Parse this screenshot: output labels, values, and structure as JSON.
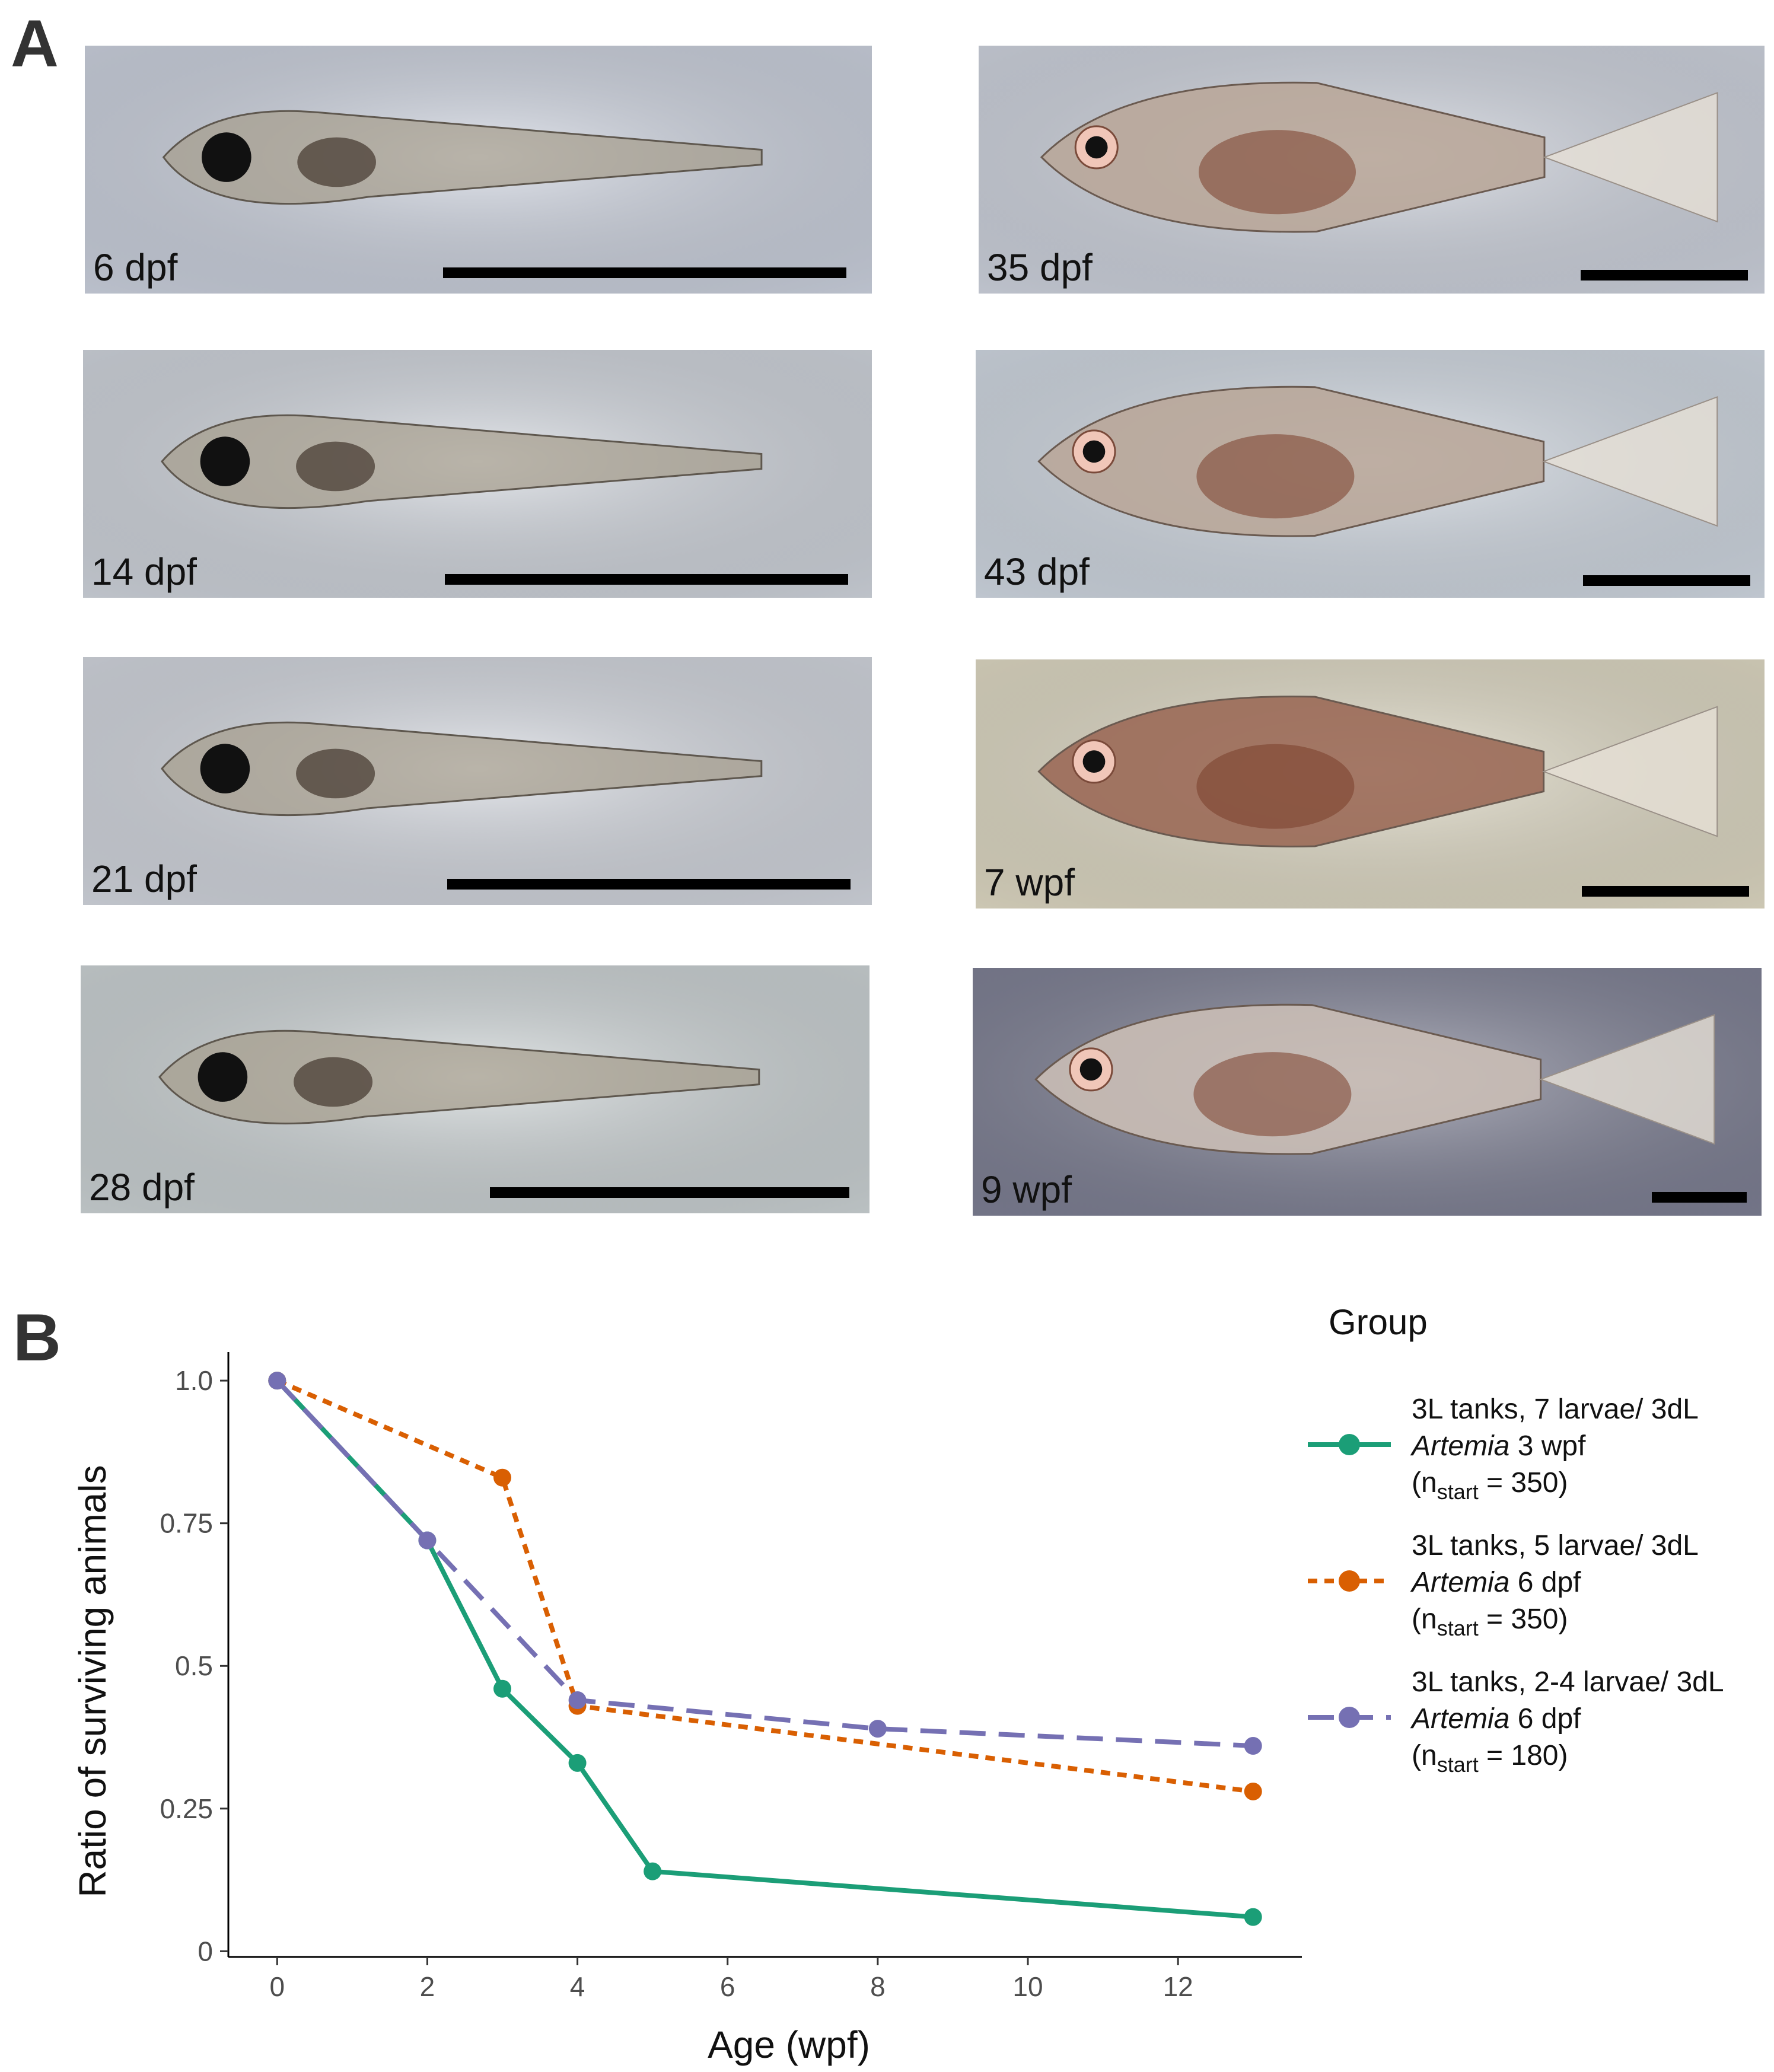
{
  "panels": {
    "a_label": "A",
    "b_label": "B"
  },
  "photos": [
    {
      "age": "6 dpf",
      "stage": "larva",
      "tint": "#cfd5e2"
    },
    {
      "age": "14 dpf",
      "stage": "larva",
      "tint": "#d3d8e0"
    },
    {
      "age": "21 dpf",
      "stage": "larva",
      "tint": "#d6dae2"
    },
    {
      "age": "28 dpf",
      "stage": "larva",
      "tint": "#cfd6d8"
    },
    {
      "age": "35 dpf",
      "stage": "juvenile",
      "tint": "#d2d7e2"
    },
    {
      "age": "43 dpf",
      "stage": "juvenile",
      "tint": "#d4dce6"
    },
    {
      "age": "7 wpf",
      "stage": "juvenile",
      "tint": "#e3ddc7"
    },
    {
      "age": "9 wpf",
      "stage": "adult",
      "tint": "#7f8196"
    }
  ],
  "chart_data": {
    "type": "line",
    "xlabel": "Age (wpf)",
    "ylabel": "Ratio of surviving animals",
    "xlim": [
      -0.65,
      13.65
    ],
    "ylim": [
      -0.01,
      1.05
    ],
    "xticks": [
      0,
      2,
      4,
      6,
      8,
      10,
      12
    ],
    "yticks": [
      {
        "value": 0,
        "label": "0"
      },
      {
        "value": 0.25,
        "label": "0.25"
      },
      {
        "value": 0.5,
        "label": "0.5"
      },
      {
        "value": 0.75,
        "label": "0.75"
      },
      {
        "value": 1.0,
        "label": "1.0"
      }
    ],
    "legend_title": "Group",
    "legend_position": "right",
    "series": [
      {
        "name": "3L tanks, 7 larvae/ 3dL Artemia 3 wpf (nstart = 350)",
        "line1": "3L tanks, 7 larvae/ 3dL",
        "food": "Artemia",
        "food_age": "3 wpf",
        "n_prefix": "(n",
        "n_sub": "start",
        "n_value": " = 350)",
        "color": "#1b9e77",
        "dash": "solid",
        "x": [
          0,
          2,
          3,
          4,
          5,
          13
        ],
        "y": [
          1.0,
          0.72,
          0.46,
          0.33,
          0.14,
          0.06
        ]
      },
      {
        "name": "3L tanks, 5 larvae/ 3dL Artemia 6 dpf (nstart = 350)",
        "line1": "3L tanks, 5 larvae/ 3dL",
        "food": "Artemia",
        "food_age": "6 dpf",
        "n_prefix": "(n",
        "n_sub": "start",
        "n_value": " = 350)",
        "color": "#d95f02",
        "dash": "short",
        "x": [
          0,
          3,
          4,
          13
        ],
        "y": [
          1.0,
          0.83,
          0.43,
          0.28
        ]
      },
      {
        "name": "3L tanks, 2-4 larvae/ 3dL Artemia 6 dpf (nstart = 180)",
        "line1": "3L tanks, 2-4 larvae/ 3dL",
        "food": "Artemia",
        "food_age": "6 dpf",
        "n_prefix": "(n",
        "n_sub": "start",
        "n_value": " = 180)",
        "color": "#7570b3",
        "dash": "long",
        "x": [
          0,
          2,
          4,
          8,
          13
        ],
        "y": [
          1.0,
          0.72,
          0.44,
          0.39,
          0.36
        ]
      }
    ]
  }
}
